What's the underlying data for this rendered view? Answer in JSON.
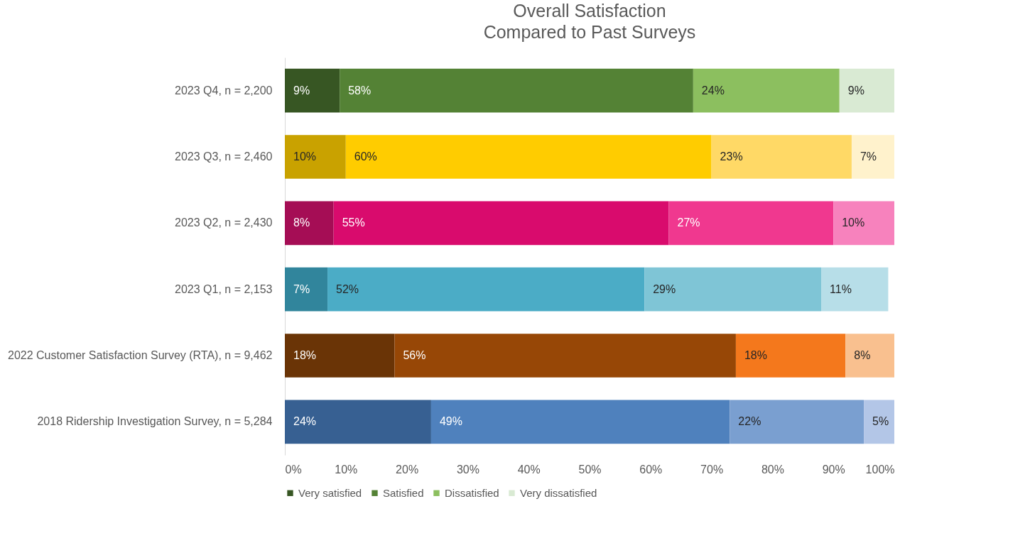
{
  "chart_data": {
    "type": "bar",
    "title": "Overall Satisfaction\nCompared to Past Surveys",
    "orientation": "horizontal",
    "stacked": true,
    "legend": "bottom",
    "grid": false,
    "categories": [
      "2023 Q4, n = 2,200",
      "2023 Q3, n = 2,460",
      "2023 Q2, n = 2,430",
      "2023 Q1, n = 2,153",
      "2022 Customer Satisfaction Survey (RTA), n = 9,462",
      "2018 Ridership Investigation Survey, n = 5,284"
    ],
    "xlim": [
      0,
      100
    ],
    "xticks": [
      {
        "value": 0,
        "label": "0%"
      },
      {
        "value": 10,
        "label": "10%"
      },
      {
        "value": 20,
        "label": "20%"
      },
      {
        "value": 30,
        "label": "30%"
      },
      {
        "value": 40,
        "label": "40%"
      },
      {
        "value": 50,
        "label": "50%"
      },
      {
        "value": 60,
        "label": "60%"
      },
      {
        "value": 70,
        "label": "70%"
      },
      {
        "value": 80,
        "label": "80%"
      },
      {
        "value": 90,
        "label": "90%"
      },
      {
        "value": 100,
        "label": "100%"
      }
    ],
    "series": [
      {
        "name": "Very satisfied",
        "color": "#375623",
        "colors": [
          "#375623",
          "#c9a200",
          "#a50d55",
          "#31859c",
          "#6a3406",
          "#376092"
        ],
        "values": [
          9,
          10,
          8,
          7,
          18,
          24
        ],
        "value_labels": [
          "9%",
          "10%",
          "8%",
          "7%",
          "18%",
          "24%"
        ]
      },
      {
        "name": "Satisfied",
        "color": "#548235",
        "colors": [
          "#548235",
          "#ffcc00",
          "#d90b6d",
          "#4bacc6",
          "#974706",
          "#4f81bd"
        ],
        "values": [
          58,
          60,
          55,
          52,
          56,
          49
        ],
        "value_labels": [
          "58%",
          "60%",
          "55%",
          "52%",
          "56%",
          "49%"
        ]
      },
      {
        "name": "Dissatisfied",
        "color": "#8cbf5f",
        "colors": [
          "#8cbf5f",
          "#ffd966",
          "#f0388f",
          "#7fc5d6",
          "#f4781c",
          "#7a9fd0"
        ],
        "values": [
          24,
          23,
          27,
          29,
          18,
          22
        ],
        "value_labels": [
          "24%",
          "23%",
          "27%",
          "29%",
          "18%",
          "22%"
        ]
      },
      {
        "name": "Very dissatisfied",
        "color": "#d9ead3",
        "colors": [
          "#d9ead3",
          "#fff2cc",
          "#f782bd",
          "#b7dee8",
          "#f9c08f",
          "#b3c6e7"
        ],
        "values": [
          9,
          7,
          10,
          11,
          8,
          5
        ],
        "value_labels": [
          "9%",
          "7%",
          "10%",
          "11%",
          "8%",
          "5%"
        ]
      }
    ]
  }
}
